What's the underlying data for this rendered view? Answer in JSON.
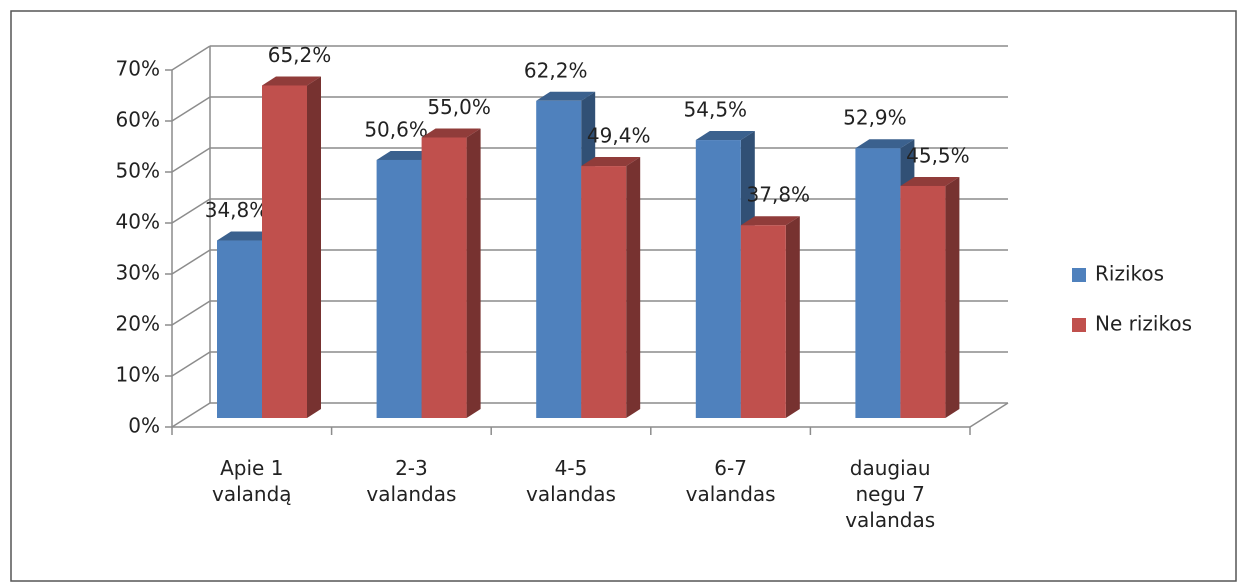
{
  "chart_data": {
    "type": "bar3d",
    "categories": [
      "Apie 1\nvalandą",
      "2-3\nvalandas",
      "4-5\nvalandas",
      "6-7\nvalandas",
      "daugiau\nnegu 7\nvalandas"
    ],
    "series": [
      {
        "name": "Rizikos",
        "color": "#4f81bd",
        "values": [
          34.8,
          50.6,
          62.2,
          54.5,
          52.9
        ],
        "value_labels": [
          "34,8%",
          "50,6%",
          "62,2%",
          "54,5%",
          "52,9%"
        ]
      },
      {
        "name": "Ne rizikos",
        "color": "#c0504d",
        "values": [
          65.2,
          55.0,
          49.4,
          37.8,
          45.5
        ],
        "value_labels": [
          "65,2%",
          "55,0%",
          "49,4%",
          "37,8%",
          "45,5%"
        ]
      }
    ],
    "ylim": [
      0,
      70
    ],
    "yticks": [
      {
        "value": 0,
        "label": "0%"
      },
      {
        "value": 10,
        "label": "10%"
      },
      {
        "value": 20,
        "label": "20%"
      },
      {
        "value": 30,
        "label": "30%"
      },
      {
        "value": 40,
        "label": "40%"
      },
      {
        "value": 50,
        "label": "50%"
      },
      {
        "value": 60,
        "label": "60%"
      },
      {
        "value": 70,
        "label": "70%"
      }
    ],
    "grid": true,
    "legend": "right"
  }
}
